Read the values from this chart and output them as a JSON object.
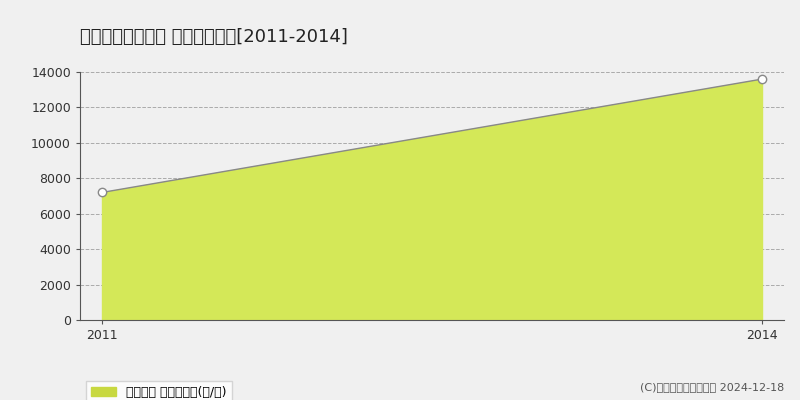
{
  "title": "香取郡多古町川島 農地価格推移[2011-2014]",
  "years": [
    2011,
    2014
  ],
  "values": [
    7200,
    13600
  ],
  "ylim": [
    0,
    14000
  ],
  "yticks": [
    0,
    2000,
    4000,
    6000,
    8000,
    10000,
    12000,
    14000
  ],
  "xticks": [
    2011,
    2014
  ],
  "line_color": "#888888",
  "fill_color": "#d4e858",
  "fill_alpha": 1.0,
  "marker_color": "white",
  "marker_edge_color": "#888888",
  "marker_size": 6,
  "grid_color": "#aaaaaa",
  "grid_style": "--",
  "bg_color": "#f0f0f0",
  "plot_bg_color": "#f0f0f0",
  "legend_label": "農地価格 平均坪単価(円/坪)",
  "legend_marker_color": "#c8d840",
  "copyright_text": "(C)土地価格ドットコム 2024-12-18",
  "title_fontsize": 13,
  "axis_fontsize": 9,
  "legend_fontsize": 9,
  "copyright_fontsize": 8
}
